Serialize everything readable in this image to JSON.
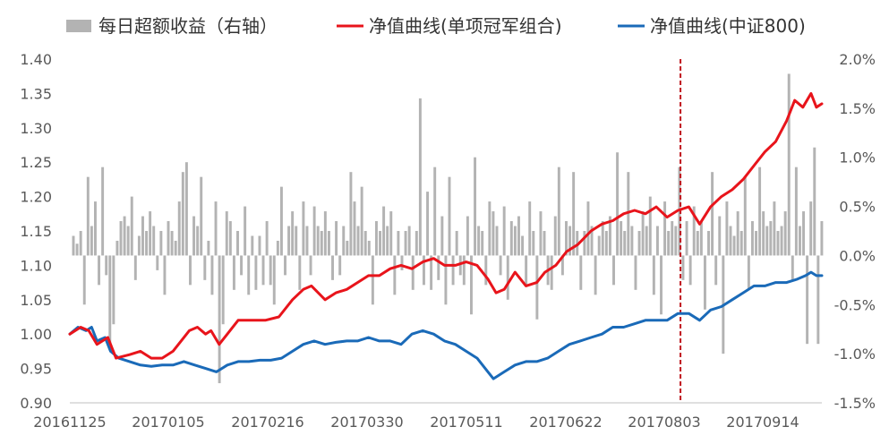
{
  "chart_data": {
    "type": "line",
    "legend": {
      "placement": "top",
      "items": [
        {
          "name": "每日超额收益（右轴）",
          "kind": "bar",
          "color": "#b3b3b3"
        },
        {
          "name": "净值曲线(单项冠军组合)",
          "kind": "line",
          "color": "#e8141b"
        },
        {
          "name": "净值曲线(中证800)",
          "kind": "line",
          "color": "#1a6ab8"
        }
      ]
    },
    "x_ticks": [
      "20161125",
      "20170105",
      "20170216",
      "20170330",
      "20170511",
      "20170622",
      "20170803",
      "20170914"
    ],
    "y_left": {
      "min": 0.9,
      "max": 1.4,
      "ticks": [
        "0.90",
        "0.95",
        "1.00",
        "1.05",
        "1.10",
        "1.15",
        "1.20",
        "1.25",
        "1.30",
        "1.35",
        "1.40"
      ]
    },
    "y_right": {
      "min": -1.5,
      "max": 2.0,
      "unit": "%",
      "ticks": [
        "-1.5%",
        "-1.0%",
        "-0.5%",
        "0.0%",
        "0.5%",
        "1.0%",
        "1.5%",
        "2.0%"
      ]
    },
    "marker_line": {
      "color": "#c0171e",
      "style": "dashed",
      "position": 0.812
    },
    "n_days": 207,
    "series": [
      {
        "name": "净值曲线(单项冠军组合)",
        "color": "#e8141b",
        "points": [
          [
            0,
            1.0
          ],
          [
            4,
            1.01
          ],
          [
            7,
            1.005
          ],
          [
            10,
            0.985
          ],
          [
            14,
            0.995
          ],
          [
            17,
            0.965
          ],
          [
            22,
            0.97
          ],
          [
            26,
            0.975
          ],
          [
            30,
            0.965
          ],
          [
            34,
            0.965
          ],
          [
            38,
            0.975
          ],
          [
            41,
            0.99
          ],
          [
            44,
            1.005
          ],
          [
            47,
            1.01
          ],
          [
            50,
            1.0
          ],
          [
            52,
            1.005
          ],
          [
            55,
            0.985
          ],
          [
            58,
            1.0
          ],
          [
            62,
            1.02
          ],
          [
            66,
            1.02
          ],
          [
            72,
            1.02
          ],
          [
            77,
            1.025
          ],
          [
            82,
            1.05
          ],
          [
            86,
            1.065
          ],
          [
            89,
            1.07
          ],
          [
            94,
            1.05
          ],
          [
            98,
            1.06
          ],
          [
            102,
            1.065
          ],
          [
            106,
            1.075
          ],
          [
            110,
            1.085
          ],
          [
            114,
            1.085
          ],
          [
            118,
            1.095
          ],
          [
            122,
            1.1
          ],
          [
            126,
            1.095
          ],
          [
            130,
            1.105
          ],
          [
            134,
            1.11
          ],
          [
            138,
            1.1
          ],
          [
            142,
            1.1
          ],
          [
            146,
            1.105
          ],
          [
            150,
            1.1
          ],
          [
            154,
            1.08
          ],
          [
            157,
            1.06
          ],
          [
            160,
            1.065
          ],
          [
            164,
            1.09
          ],
          [
            168,
            1.07
          ],
          [
            172,
            1.075
          ],
          [
            175,
            1.09
          ],
          [
            179,
            1.1
          ],
          [
            183,
            1.12
          ],
          [
            187,
            1.13
          ],
          [
            192,
            1.15
          ],
          [
            196,
            1.16
          ],
          [
            200,
            1.165
          ],
          [
            204,
            1.175
          ],
          [
            208,
            1.18
          ],
          [
            212,
            1.175
          ],
          [
            216,
            1.185
          ],
          [
            220,
            1.17
          ],
          [
            224,
            1.18
          ],
          [
            228,
            1.185
          ],
          [
            232,
            1.16
          ],
          [
            236,
            1.185
          ],
          [
            240,
            1.2
          ],
          [
            244,
            1.21
          ],
          [
            248,
            1.225
          ],
          [
            252,
            1.245
          ],
          [
            256,
            1.265
          ],
          [
            260,
            1.28
          ],
          [
            264,
            1.31
          ],
          [
            267,
            1.34
          ],
          [
            270,
            1.33
          ],
          [
            273,
            1.35
          ],
          [
            275,
            1.33
          ],
          [
            277,
            1.335
          ]
        ]
      },
      {
        "name": "净值曲线(中证800)",
        "color": "#1a6ab8",
        "points": [
          [
            0,
            1.0
          ],
          [
            3,
            1.01
          ],
          [
            6,
            1.005
          ],
          [
            8,
            1.01
          ],
          [
            10,
            0.99
          ],
          [
            13,
            0.995
          ],
          [
            15,
            0.975
          ],
          [
            18,
            0.965
          ],
          [
            22,
            0.96
          ],
          [
            26,
            0.955
          ],
          [
            30,
            0.953
          ],
          [
            34,
            0.955
          ],
          [
            38,
            0.955
          ],
          [
            42,
            0.96
          ],
          [
            46,
            0.955
          ],
          [
            50,
            0.95
          ],
          [
            54,
            0.945
          ],
          [
            58,
            0.955
          ],
          [
            62,
            0.96
          ],
          [
            66,
            0.96
          ],
          [
            70,
            0.962
          ],
          [
            74,
            0.962
          ],
          [
            78,
            0.965
          ],
          [
            82,
            0.975
          ],
          [
            86,
            0.985
          ],
          [
            90,
            0.99
          ],
          [
            94,
            0.985
          ],
          [
            98,
            0.988
          ],
          [
            102,
            0.99
          ],
          [
            106,
            0.99
          ],
          [
            110,
            0.995
          ],
          [
            114,
            0.99
          ],
          [
            118,
            0.99
          ],
          [
            122,
            0.985
          ],
          [
            126,
            1.0
          ],
          [
            130,
            1.005
          ],
          [
            134,
            1.0
          ],
          [
            138,
            0.99
          ],
          [
            142,
            0.985
          ],
          [
            146,
            0.975
          ],
          [
            150,
            0.965
          ],
          [
            154,
            0.945
          ],
          [
            156,
            0.935
          ],
          [
            160,
            0.945
          ],
          [
            164,
            0.955
          ],
          [
            168,
            0.96
          ],
          [
            172,
            0.96
          ],
          [
            176,
            0.965
          ],
          [
            180,
            0.975
          ],
          [
            184,
            0.985
          ],
          [
            188,
            0.99
          ],
          [
            192,
            0.995
          ],
          [
            196,
            1.0
          ],
          [
            200,
            1.01
          ],
          [
            204,
            1.01
          ],
          [
            208,
            1.015
          ],
          [
            212,
            1.02
          ],
          [
            216,
            1.02
          ],
          [
            220,
            1.02
          ],
          [
            224,
            1.03
          ],
          [
            228,
            1.03
          ],
          [
            232,
            1.02
          ],
          [
            236,
            1.035
          ],
          [
            240,
            1.04
          ],
          [
            244,
            1.05
          ],
          [
            248,
            1.06
          ],
          [
            252,
            1.07
          ],
          [
            256,
            1.07
          ],
          [
            260,
            1.075
          ],
          [
            264,
            1.075
          ],
          [
            268,
            1.08
          ],
          [
            271,
            1.085
          ],
          [
            273,
            1.09
          ],
          [
            275,
            1.085
          ],
          [
            277,
            1.085
          ]
        ]
      }
    ],
    "excess_bars": [
      {
        "name": "每日超额收益（右轴）",
        "color": "#b3b3b3",
        "values": [
          0.2,
          0.12,
          0.25,
          -0.5,
          0.8,
          0.3,
          0.55,
          -0.3,
          0.9,
          -0.2,
          -0.9,
          -0.7,
          0.15,
          0.35,
          0.4,
          0.3,
          0.6,
          -0.25,
          0.2,
          0.4,
          0.25,
          0.45,
          0.3,
          -0.15,
          0.25,
          -0.4,
          0.35,
          0.25,
          0.15,
          0.55,
          0.85,
          0.95,
          -0.3,
          0.4,
          0.3,
          0.8,
          -0.25,
          0.15,
          -0.4,
          0.55,
          -1.3,
          -0.7,
          0.45,
          0.35,
          -0.35,
          0.25,
          -0.2,
          0.5,
          -0.4,
          0.2,
          -0.35,
          0.2,
          -0.3,
          0.35,
          -0.3,
          -0.5,
          0.15,
          0.7,
          -0.2,
          0.3,
          0.45,
          0.3,
          -0.35,
          0.55,
          0.3,
          -0.2,
          0.5,
          0.3,
          0.25,
          0.45,
          0.25,
          -0.25,
          0.35,
          -0.2,
          0.3,
          0.15,
          0.85,
          0.55,
          0.3,
          0.7,
          0.25,
          0.15,
          -0.5,
          0.35,
          0.25,
          0.5,
          0.3,
          0.45,
          -0.4,
          0.25,
          -0.15,
          0.25,
          0.3,
          -0.35,
          0.25,
          1.6,
          -0.3,
          0.65,
          -0.35,
          0.9,
          -0.25,
          0.4,
          -0.5,
          0.8,
          -0.3,
          0.25,
          -0.2,
          -0.3,
          0.4,
          -0.6,
          1.0,
          0.3,
          0.25,
          -0.3,
          0.55,
          0.45,
          0.3,
          -0.2,
          0.5,
          -0.45,
          0.35,
          0.3,
          0.4,
          0.2,
          -0.3,
          0.55,
          0.25,
          -0.65,
          0.45,
          0.25,
          -0.3,
          -0.35,
          0.4,
          0.9,
          -0.2,
          0.35,
          0.3,
          0.85,
          0.25,
          -0.35,
          0.25,
          0.55,
          0.3,
          -0.4,
          0.2,
          0.35,
          0.25,
          0.4,
          -0.3,
          1.05,
          0.35,
          0.25,
          0.85,
          0.3,
          -0.35,
          0.25,
          0.45,
          0.3,
          0.6,
          -0.4,
          0.3,
          -0.6,
          0.55,
          0.25,
          0.35,
          0.3,
          0.9,
          -0.25,
          0.35,
          -0.3,
          0.5,
          0.25,
          0.35,
          -0.55,
          0.25,
          0.85,
          -0.3,
          0.4,
          -1.0,
          0.55,
          0.3,
          0.2,
          0.45,
          0.25,
          0.8,
          -0.35,
          0.35,
          0.25,
          0.9,
          0.45,
          0.3,
          0.35,
          0.55,
          0.25,
          0.3,
          0.45,
          1.85,
          -0.25,
          0.9,
          0.3,
          0.45,
          -0.9,
          0.55,
          1.1,
          -0.9,
          0.35
        ]
      }
    ]
  }
}
